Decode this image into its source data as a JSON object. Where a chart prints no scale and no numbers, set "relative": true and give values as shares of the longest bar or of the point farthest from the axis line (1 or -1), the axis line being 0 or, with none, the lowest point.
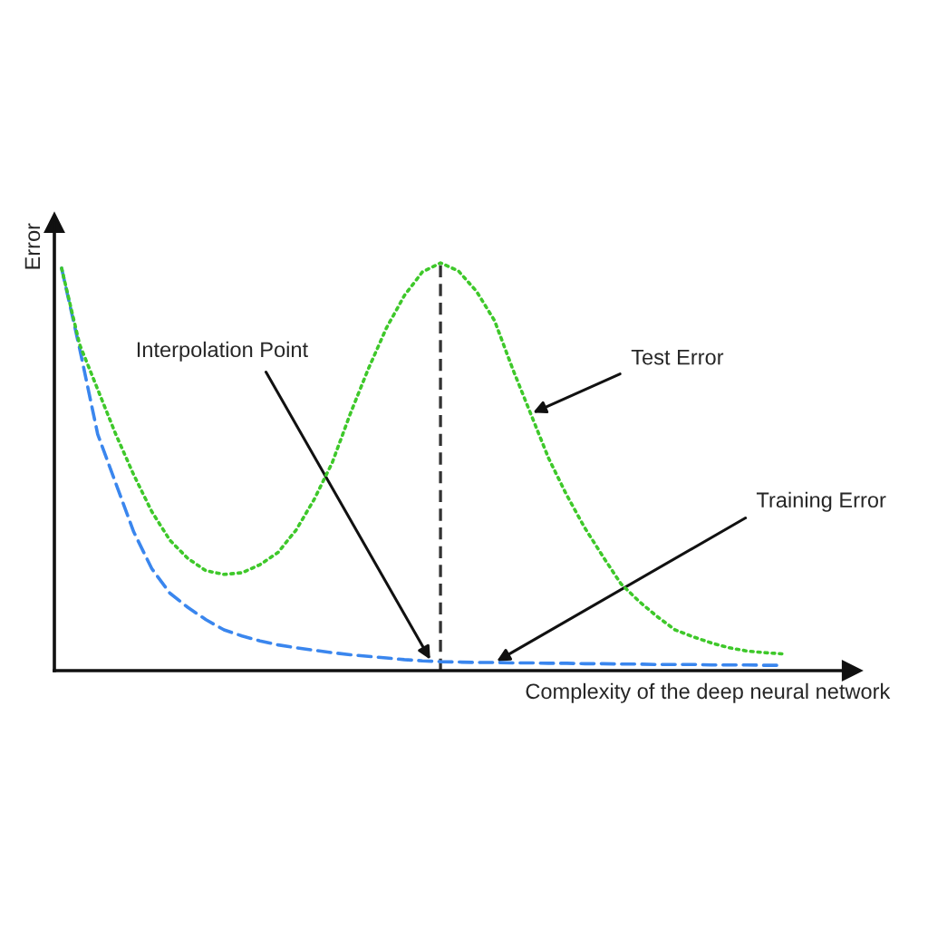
{
  "chart_data": {
    "type": "line",
    "relative": true,
    "ylabel": "Error",
    "xlabel": "Complexity of the deep neural network",
    "categories": [
      null,
      null,
      null,
      null,
      null,
      null,
      null,
      null,
      null,
      null,
      null,
      null,
      null,
      null,
      null,
      null,
      null,
      null,
      null,
      null,
      null,
      null,
      null,
      null,
      null,
      null,
      null,
      null,
      null,
      null,
      null,
      null,
      null,
      null,
      null,
      null,
      null,
      null,
      null,
      null,
      null
    ],
    "series": [
      {
        "color": "#3ec82a",
        "line_style": "dotted",
        "values": [
          0.987,
          0.8,
          0.69,
          0.58,
          0.48,
          0.39,
          0.32,
          0.275,
          0.245,
          0.236,
          0.24,
          0.26,
          0.29,
          0.345,
          0.42,
          0.51,
          0.63,
          0.74,
          0.84,
          0.92,
          0.978,
          1.0,
          0.98,
          0.93,
          0.858,
          0.74,
          0.63,
          0.52,
          0.43,
          0.35,
          0.28,
          0.213,
          0.17,
          0.133,
          0.1,
          0.083,
          0.068,
          0.056,
          0.048,
          0.044,
          0.041
        ]
      },
      {
        "color": "#3a86ee",
        "line_style": "dashed",
        "values": [
          0.987,
          0.79,
          0.58,
          0.46,
          0.34,
          0.25,
          0.19,
          0.155,
          0.125,
          0.1,
          0.085,
          0.073,
          0.063,
          0.056,
          0.05,
          0.044,
          0.039,
          0.035,
          0.031,
          0.027,
          0.024,
          0.022,
          0.021,
          0.02,
          0.02,
          0.019,
          0.019,
          0.018,
          0.018,
          0.017,
          0.017,
          0.016,
          0.016,
          0.015,
          0.015,
          0.015,
          0.014,
          0.014,
          0.014,
          0.013,
          0.013
        ]
      }
    ],
    "annotations": [
      "Interpolation Point",
      "Test Error",
      "Training Error"
    ]
  }
}
